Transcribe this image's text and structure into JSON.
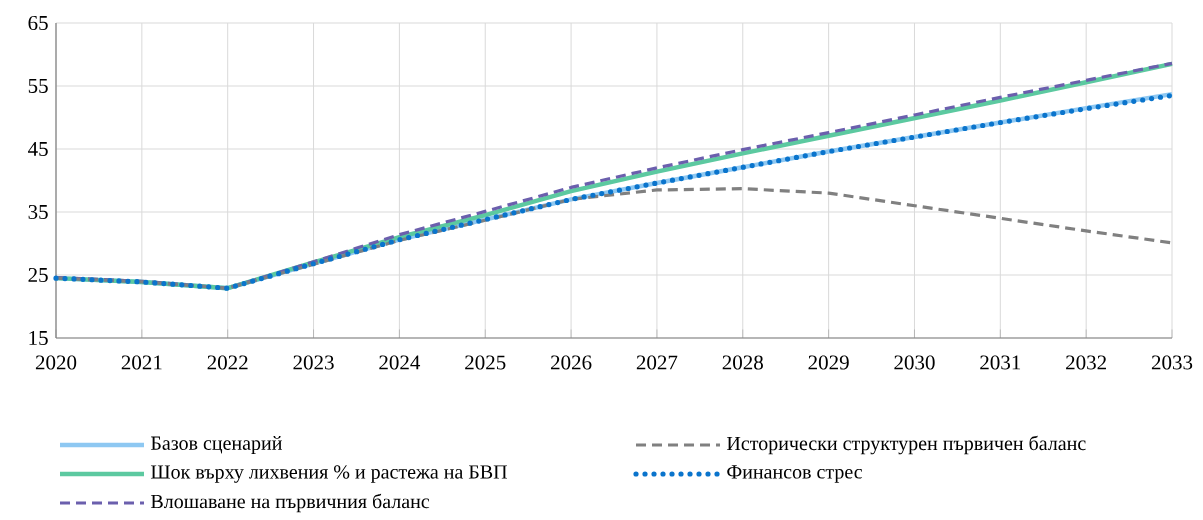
{
  "chart_data": {
    "type": "line",
    "x": [
      2020,
      2021,
      2022,
      2023,
      2024,
      2025,
      2026,
      2027,
      2028,
      2029,
      2030,
      2031,
      2032,
      2033
    ],
    "series": [
      {
        "name": "Базов сценарий",
        "color": "#8ec8f2",
        "line_style": "solid",
        "values": [
          24.5,
          23.9,
          22.9,
          26.8,
          30.6,
          33.8,
          37.0,
          39.6,
          42.1,
          44.6,
          46.9,
          49.2,
          51.5,
          53.7
        ]
      },
      {
        "name": "Шок върху лихвения % и растежа на БВП",
        "color": "#5cc9a0",
        "line_style": "solid",
        "values": [
          24.5,
          23.9,
          22.9,
          27.0,
          31.0,
          34.5,
          38.3,
          41.4,
          44.3,
          47.1,
          49.9,
          52.7,
          55.6,
          58.5
        ]
      },
      {
        "name": "Влошаване на първичния баланс",
        "color": "#6b5fad",
        "line_style": "dashed",
        "values": [
          24.6,
          24.0,
          22.9,
          27.1,
          31.4,
          35.1,
          38.9,
          42.0,
          44.9,
          47.6,
          50.4,
          53.2,
          55.9,
          58.6
        ]
      },
      {
        "name": "Исторически структурен първичен баланс",
        "color": "#808080",
        "line_style": "dashed",
        "values": [
          24.5,
          23.9,
          22.9,
          26.7,
          30.5,
          33.7,
          37.0,
          38.5,
          38.7,
          38.0,
          36.0,
          34.0,
          32.0,
          30.1
        ]
      },
      {
        "name": "Финансов стрес",
        "color": "#0a74cc",
        "line_style": "dotted",
        "values": [
          24.5,
          23.9,
          22.9,
          26.8,
          30.6,
          33.8,
          37.0,
          39.6,
          42.1,
          44.6,
          46.9,
          49.2,
          51.4,
          53.5
        ]
      }
    ],
    "xlim": [
      2020,
      2033
    ],
    "xticks": [
      2020,
      2021,
      2022,
      2023,
      2024,
      2025,
      2026,
      2027,
      2028,
      2029,
      2030,
      2031,
      2032,
      2033
    ],
    "ylim": [
      15,
      65
    ],
    "yticks": [
      15,
      25,
      35,
      45,
      55,
      65
    ],
    "grid": true,
    "legend": "bottom",
    "marker": "none"
  }
}
